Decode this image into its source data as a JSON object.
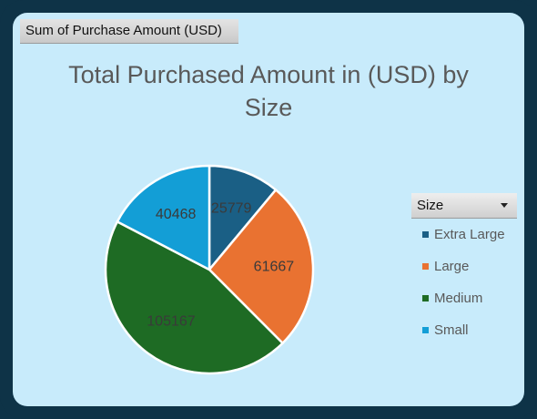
{
  "pivot_field": "Sum of Purchase  Amount (USD)",
  "filter": {
    "label": "Size",
    "icon": "dropdown-arrow-icon"
  },
  "colors": {
    "frame": "#0e3347",
    "panel": "#c8ebfb",
    "title": "#595959"
  },
  "chart_data": {
    "type": "pie",
    "title": "Total Purchased Amount in (USD) by Size",
    "title_lines": [
      "Total Purchased Amount in (USD) by",
      "Size"
    ],
    "legend_position": "right",
    "categories": [
      "Extra Large",
      "Large",
      "Medium",
      "Small"
    ],
    "values": [
      25779,
      61667,
      105167,
      40468
    ],
    "colors": [
      "#1a5f85",
      "#e97231",
      "#1e6b24",
      "#139ed6"
    ]
  }
}
